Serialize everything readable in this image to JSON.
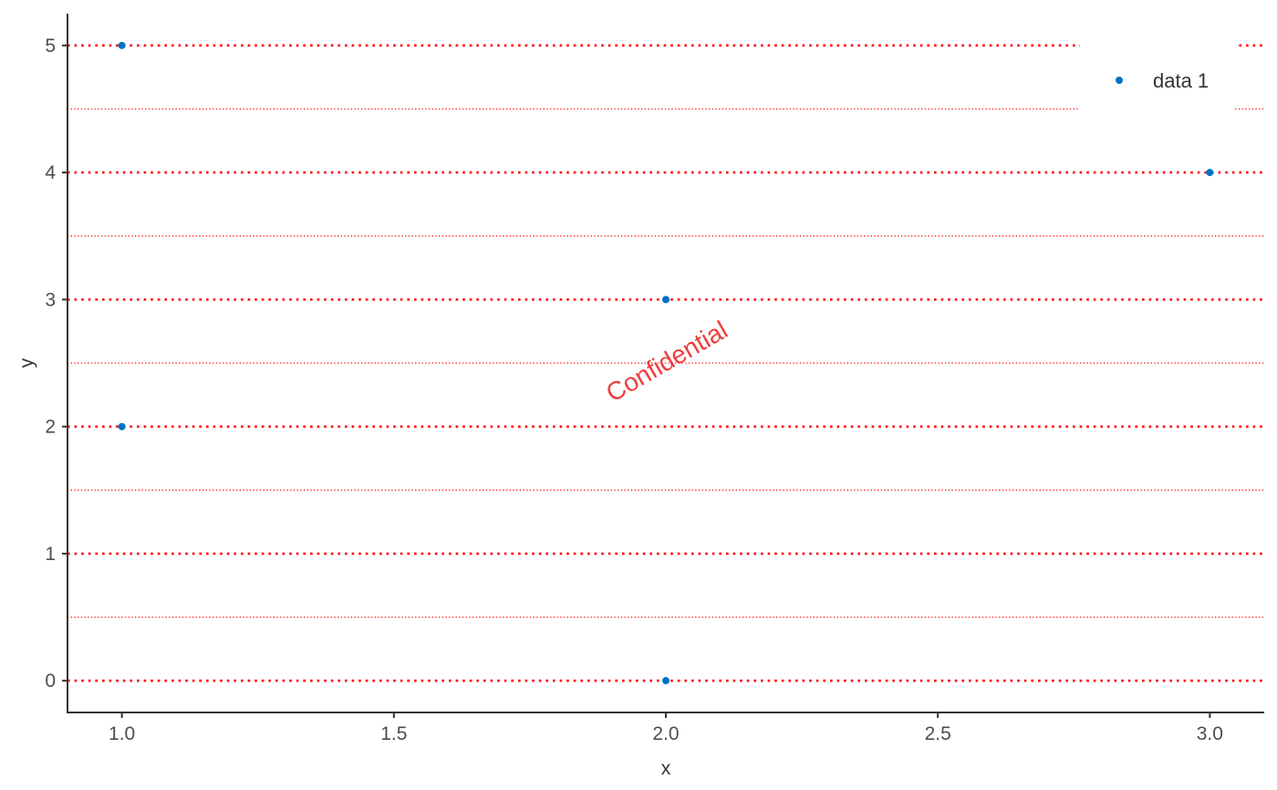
{
  "chart_data": {
    "type": "scatter",
    "series": [
      {
        "name": "data 1",
        "color": "#0072c6",
        "x": [
          1.0,
          1.0,
          2.0,
          2.0,
          3.0
        ],
        "y": [
          5,
          2,
          3,
          0,
          4
        ]
      }
    ],
    "xlabel": "x",
    "ylabel": "y",
    "xlim": [
      0.9,
      3.1
    ],
    "ylim": [
      -0.25,
      5.25
    ],
    "x_ticks": [
      1.0,
      1.5,
      2.0,
      2.5,
      3.0
    ],
    "x_tick_labels": [
      "1.0",
      "1.5",
      "2.0",
      "2.5",
      "3.0"
    ],
    "y_ticks": [
      0,
      1,
      2,
      3,
      4,
      5
    ],
    "y_tick_labels": [
      "0",
      "1",
      "2",
      "3",
      "4",
      "5"
    ],
    "grid": {
      "major_y": true,
      "minor_y": true,
      "major_x": false,
      "style": "dotted",
      "color": "#ff0000"
    },
    "legend": {
      "position": "top-right"
    },
    "watermark": {
      "text": "Confidential",
      "color": "#f03c3c"
    }
  }
}
